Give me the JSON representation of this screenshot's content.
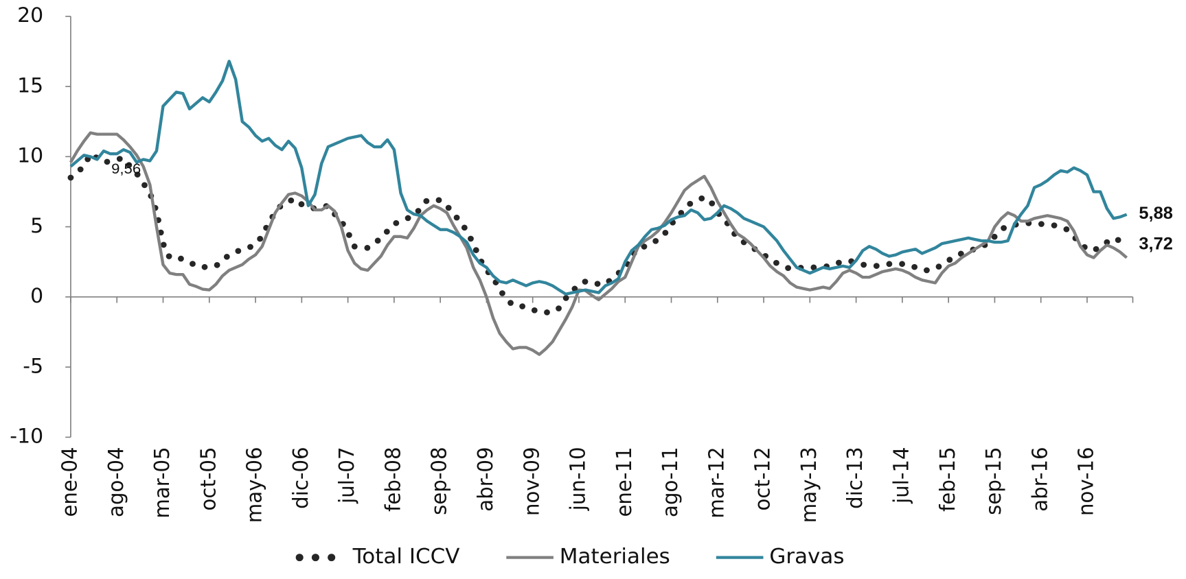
{
  "chart_data": {
    "type": "line",
    "categories": [
      "ene-04",
      null,
      null,
      null,
      null,
      null,
      null,
      "ago-04",
      null,
      null,
      null,
      null,
      null,
      null,
      "mar-05",
      null,
      null,
      null,
      null,
      null,
      null,
      "oct-05",
      null,
      null,
      null,
      null,
      null,
      null,
      "may-06",
      null,
      null,
      null,
      null,
      null,
      null,
      "dic-06",
      null,
      null,
      null,
      null,
      null,
      null,
      "jul-07",
      null,
      null,
      null,
      null,
      null,
      null,
      "feb-08",
      null,
      null,
      null,
      null,
      null,
      null,
      "sep-08",
      null,
      null,
      null,
      null,
      null,
      null,
      "abr-09",
      null,
      null,
      null,
      null,
      null,
      null,
      "nov-09",
      null,
      null,
      null,
      null,
      null,
      null,
      "jun-10",
      null,
      null,
      null,
      null,
      null,
      null,
      "ene-11",
      null,
      null,
      null,
      null,
      null,
      null,
      "ago-11",
      null,
      null,
      null,
      null,
      null,
      null,
      "mar-12",
      null,
      null,
      null,
      null,
      null,
      null,
      "oct-12",
      null,
      null,
      null,
      null,
      null,
      null,
      "may-13",
      null,
      null,
      null,
      null,
      null,
      null,
      "dic-13",
      null,
      null,
      null,
      null,
      null,
      null,
      "jul-14",
      null,
      null,
      null,
      null,
      null,
      null,
      "feb-15",
      null,
      null,
      null,
      null,
      null,
      null,
      "sep-15",
      null,
      null,
      null,
      null,
      null,
      null,
      "abr-16",
      null,
      null,
      null,
      null,
      null,
      null,
      "nov-16",
      null,
      null,
      null,
      null,
      null,
      null
    ],
    "series": [
      {
        "name": "Total ICCV",
        "color": "#262626",
        "style": "dotted",
        "values": [
          8.5,
          8.9,
          9.3,
          10.2,
          9.9,
          9.56,
          9.7,
          9.8,
          9.9,
          9.3,
          8.8,
          8.1,
          7.4,
          6.1,
          3.8,
          2.8,
          2.8,
          2.7,
          2.5,
          2.2,
          2.1,
          2.2,
          2.2,
          2.6,
          3.0,
          3.2,
          3.4,
          3.5,
          3.8,
          4.3,
          5.3,
          6.0,
          6.6,
          6.8,
          7.0,
          6.6,
          6.4,
          6.3,
          6.4,
          6.5,
          5.9,
          5.4,
          4.6,
          3.6,
          3.5,
          3.5,
          3.8,
          4.2,
          4.7,
          5.2,
          5.4,
          5.6,
          5.8,
          6.3,
          6.9,
          6.9,
          6.9,
          6.5,
          5.9,
          5.4,
          4.7,
          3.8,
          2.7,
          1.9,
          1.4,
          0.5,
          -0.1,
          -0.6,
          -0.65,
          -0.7,
          -0.9,
          -1.1,
          -1.1,
          -1.1,
          -0.8,
          -0.1,
          0.4,
          0.9,
          1.1,
          1.1,
          0.9,
          0.9,
          1.3,
          1.7,
          2.0,
          2.9,
          3.5,
          3.6,
          3.8,
          4.1,
          4.5,
          5.2,
          5.7,
          6.3,
          6.7,
          6.9,
          7.1,
          6.8,
          6.0,
          5.6,
          4.9,
          4.2,
          3.9,
          3.6,
          3.3,
          3.0,
          2.7,
          2.4,
          2.2,
          2.0,
          2.05,
          2.1,
          2.1,
          2.1,
          2.15,
          2.2,
          2.4,
          2.5,
          2.6,
          2.4,
          2.3,
          2.25,
          2.2,
          2.3,
          2.35,
          2.4,
          2.35,
          2.3,
          2.1,
          1.9,
          1.9,
          2.0,
          2.3,
          2.6,
          2.9,
          3.1,
          3.3,
          3.4,
          3.5,
          3.9,
          4.3,
          4.8,
          5.1,
          5.15,
          5.2,
          5.25,
          5.3,
          5.2,
          5.15,
          5.1,
          5.0,
          4.8,
          4.3,
          3.8,
          3.4,
          3.3,
          3.6,
          3.9,
          4.2,
          4.0,
          3.72
        ],
        "value_labels": [
          null,
          null,
          null,
          null,
          null,
          "9,56",
          null,
          null,
          null,
          null,
          null,
          null,
          null,
          null,
          null,
          null,
          null,
          null,
          null,
          null,
          null,
          null,
          null,
          null,
          null,
          null,
          null,
          null,
          null,
          null,
          null,
          null,
          null,
          null,
          null,
          null,
          null,
          null,
          null,
          null,
          null,
          null,
          null,
          null,
          null,
          null,
          null,
          null,
          null,
          null,
          null,
          null,
          null,
          null,
          null,
          null,
          null,
          null,
          null,
          null,
          null,
          null,
          null,
          null,
          null,
          null,
          null,
          null,
          null,
          null,
          null,
          null,
          null,
          null,
          null,
          null,
          null,
          null,
          null,
          null,
          null,
          null,
          null,
          null,
          null,
          null,
          null,
          null,
          null,
          null,
          null,
          null,
          null,
          null,
          null,
          null,
          null,
          null,
          null,
          null,
          null,
          null,
          null,
          null,
          null,
          null,
          null,
          null,
          null,
          null,
          null,
          null,
          null,
          null,
          null,
          null,
          null,
          null,
          null,
          null,
          null,
          null,
          null,
          null,
          null,
          null,
          null,
          null,
          null,
          null,
          null,
          null,
          null,
          null,
          null,
          null,
          null,
          null,
          null,
          null,
          null,
          null,
          null,
          null,
          null,
          null,
          null,
          null,
          null,
          null,
          null,
          null,
          null,
          null,
          null,
          null,
          null,
          null,
          null,
          null,
          "3,72"
        ]
      },
      {
        "name": "Materiales",
        "color": "#808080",
        "style": "solid",
        "values": [
          9.6,
          10.4,
          11.1,
          11.7,
          11.6,
          11.6,
          11.6,
          11.6,
          11.2,
          10.7,
          10.1,
          9.3,
          8.0,
          5.0,
          2.3,
          1.7,
          1.6,
          1.6,
          0.9,
          0.75,
          0.55,
          0.5,
          0.9,
          1.5,
          1.9,
          2.1,
          2.3,
          2.7,
          3.0,
          3.6,
          4.8,
          6.0,
          6.7,
          7.3,
          7.4,
          7.2,
          6.8,
          6.2,
          6.2,
          6.5,
          6.1,
          5.0,
          3.3,
          2.4,
          2.0,
          1.9,
          2.4,
          2.9,
          3.7,
          4.3,
          4.3,
          4.2,
          4.9,
          5.8,
          6.2,
          6.5,
          6.3,
          6.0,
          5.1,
          4.3,
          3.5,
          2.1,
          1.2,
          0.0,
          -1.5,
          -2.6,
          -3.2,
          -3.7,
          -3.6,
          -3.6,
          -3.8,
          -4.1,
          -3.7,
          -3.2,
          -2.4,
          -1.6,
          -0.7,
          0.5,
          0.45,
          0.1,
          -0.2,
          0.2,
          0.6,
          1.1,
          1.4,
          2.5,
          3.6,
          4.0,
          4.3,
          4.7,
          5.3,
          6.0,
          6.8,
          7.6,
          8.0,
          8.3,
          8.6,
          7.8,
          6.8,
          6.0,
          5.2,
          4.5,
          4.2,
          3.8,
          3.3,
          2.8,
          2.2,
          1.8,
          1.5,
          1.0,
          0.7,
          0.6,
          0.5,
          0.6,
          0.7,
          0.6,
          1.1,
          1.7,
          1.9,
          1.7,
          1.4,
          1.4,
          1.6,
          1.8,
          1.9,
          2.0,
          1.9,
          1.7,
          1.4,
          1.2,
          1.1,
          1.0,
          1.7,
          2.2,
          2.4,
          2.8,
          3.1,
          3.4,
          3.7,
          4.0,
          5.0,
          5.6,
          6.0,
          5.8,
          5.4,
          5.4,
          5.6,
          5.7,
          5.8,
          5.7,
          5.6,
          5.4,
          4.7,
          3.6,
          3.0,
          2.8,
          3.3,
          3.7,
          3.5,
          3.2,
          2.8
        ]
      },
      {
        "name": "Gravas",
        "color": "#31859c",
        "style": "solid",
        "values": [
          9.3,
          9.7,
          10.1,
          10.0,
          9.8,
          10.4,
          10.2,
          10.2,
          10.5,
          10.3,
          9.6,
          9.8,
          9.7,
          10.4,
          13.6,
          14.1,
          14.6,
          14.5,
          13.4,
          13.8,
          14.2,
          13.9,
          14.6,
          15.4,
          16.8,
          15.5,
          12.5,
          12.1,
          11.5,
          11.1,
          11.3,
          10.8,
          10.5,
          11.1,
          10.6,
          9.2,
          6.5,
          7.3,
          9.5,
          10.7,
          10.9,
          11.1,
          11.3,
          11.4,
          11.5,
          11.0,
          10.7,
          10.7,
          11.2,
          10.5,
          7.4,
          6.2,
          5.9,
          5.8,
          5.4,
          5.1,
          4.8,
          4.8,
          4.6,
          4.3,
          3.9,
          3.0,
          2.4,
          2.1,
          1.5,
          1.1,
          1.0,
          1.2,
          1.0,
          0.8,
          1.0,
          1.1,
          1.0,
          0.8,
          0.5,
          0.2,
          0.3,
          0.4,
          0.5,
          0.4,
          0.3,
          0.8,
          1.0,
          1.3,
          2.5,
          3.3,
          3.7,
          4.3,
          4.8,
          4.9,
          5.1,
          5.5,
          5.7,
          5.8,
          6.2,
          6.0,
          5.5,
          5.6,
          6.0,
          6.5,
          6.3,
          6.0,
          5.6,
          5.4,
          5.2,
          5.0,
          4.5,
          4.0,
          3.3,
          2.7,
          2.1,
          1.9,
          1.7,
          1.9,
          2.1,
          2.0,
          2.1,
          2.2,
          2.1,
          2.6,
          3.3,
          3.6,
          3.4,
          3.1,
          2.9,
          3.0,
          3.2,
          3.3,
          3.4,
          3.1,
          3.3,
          3.5,
          3.8,
          3.9,
          4.0,
          4.1,
          4.2,
          4.1,
          4.0,
          4.0,
          3.9,
          3.9,
          4.0,
          5.2,
          5.9,
          6.5,
          7.8,
          8.0,
          8.3,
          8.7,
          9.0,
          8.9,
          9.2,
          9.0,
          8.7,
          7.5,
          7.5,
          6.3,
          5.6,
          5.7,
          5.88
        ],
        "value_labels": [
          null,
          null,
          null,
          null,
          null,
          null,
          null,
          null,
          null,
          null,
          null,
          null,
          null,
          null,
          null,
          null,
          null,
          null,
          null,
          null,
          null,
          null,
          null,
          null,
          null,
          null,
          null,
          null,
          null,
          null,
          null,
          null,
          null,
          null,
          null,
          null,
          null,
          null,
          null,
          null,
          null,
          null,
          null,
          null,
          null,
          null,
          null,
          null,
          null,
          null,
          null,
          null,
          null,
          null,
          null,
          null,
          null,
          null,
          null,
          null,
          null,
          null,
          null,
          null,
          null,
          null,
          null,
          null,
          null,
          null,
          null,
          null,
          null,
          null,
          null,
          null,
          null,
          null,
          null,
          null,
          null,
          null,
          null,
          null,
          null,
          null,
          null,
          null,
          null,
          null,
          null,
          null,
          null,
          null,
          null,
          null,
          null,
          null,
          null,
          null,
          null,
          null,
          null,
          null,
          null,
          null,
          null,
          null,
          null,
          null,
          null,
          null,
          null,
          null,
          null,
          null,
          null,
          null,
          null,
          null,
          null,
          null,
          null,
          null,
          null,
          null,
          null,
          null,
          null,
          null,
          null,
          null,
          null,
          null,
          null,
          null,
          null,
          null,
          null,
          null,
          null,
          null,
          null,
          null,
          null,
          null,
          null,
          null,
          null,
          null,
          null,
          null,
          null,
          null,
          null,
          null,
          null,
          null,
          null,
          null,
          "5,88"
        ]
      }
    ],
    "ylim": [
      -10,
      20
    ],
    "yticks": [
      -10,
      -5,
      0,
      5,
      10,
      15,
      20
    ],
    "grid": false,
    "legend": "bottom"
  }
}
